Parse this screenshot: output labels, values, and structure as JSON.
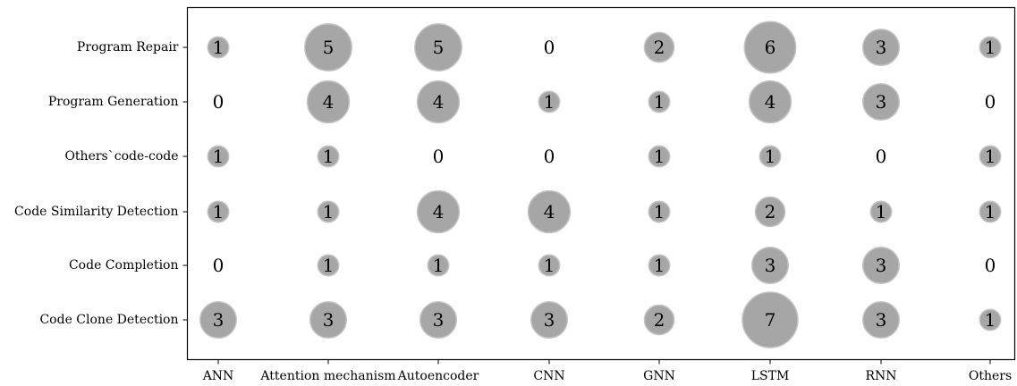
{
  "chart_data": {
    "type": "scatter",
    "subtype": "bubble",
    "title": "",
    "xlabel": "",
    "ylabel": "",
    "x_categories": [
      "ANN",
      "Attention mechanism",
      "Autoencoder",
      "CNN",
      "GNN",
      "LSTM",
      "RNN",
      "Others"
    ],
    "y_categories": [
      "Program Repair",
      "Program Generation",
      "Others`code-code",
      "Code Similarity Detection",
      "Code Completion",
      "Code Clone Detection"
    ],
    "values": [
      [
        1,
        5,
        5,
        0,
        2,
        6,
        3,
        1
      ],
      [
        0,
        4,
        4,
        1,
        1,
        4,
        3,
        0
      ],
      [
        1,
        1,
        0,
        0,
        1,
        1,
        0,
        1
      ],
      [
        1,
        1,
        4,
        4,
        1,
        2,
        1,
        1
      ],
      [
        0,
        1,
        1,
        1,
        1,
        3,
        3,
        0
      ],
      [
        3,
        3,
        3,
        3,
        2,
        7,
        3,
        1
      ]
    ],
    "bubble_color": "#a6a6a6",
    "bubble_edge_color": "#c4c4c4",
    "grid": false,
    "legend": "none"
  }
}
